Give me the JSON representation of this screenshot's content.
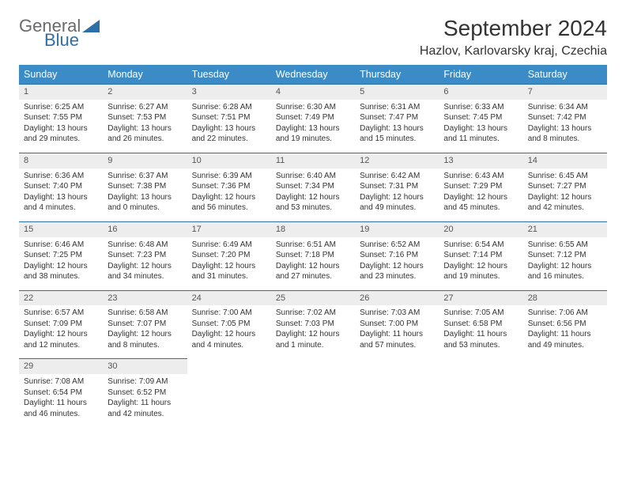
{
  "logo": {
    "text1": "General",
    "text2": "Blue"
  },
  "title": "September 2024",
  "location": "Hazlov, Karlovarsky kraj, Czechia",
  "colors": {
    "header_bg": "#3b8bc7",
    "header_text": "#ffffff",
    "daynum_bg": "#ededed",
    "border": "#2f6fa8",
    "logo_gray": "#6a6a6a",
    "logo_blue": "#2f6fa8"
  },
  "weekdays": [
    "Sunday",
    "Monday",
    "Tuesday",
    "Wednesday",
    "Thursday",
    "Friday",
    "Saturday"
  ],
  "weeks": [
    [
      {
        "n": "1",
        "sr": "6:25 AM",
        "ss": "7:55 PM",
        "dl": "13 hours and 29 minutes."
      },
      {
        "n": "2",
        "sr": "6:27 AM",
        "ss": "7:53 PM",
        "dl": "13 hours and 26 minutes."
      },
      {
        "n": "3",
        "sr": "6:28 AM",
        "ss": "7:51 PM",
        "dl": "13 hours and 22 minutes."
      },
      {
        "n": "4",
        "sr": "6:30 AM",
        "ss": "7:49 PM",
        "dl": "13 hours and 19 minutes."
      },
      {
        "n": "5",
        "sr": "6:31 AM",
        "ss": "7:47 PM",
        "dl": "13 hours and 15 minutes."
      },
      {
        "n": "6",
        "sr": "6:33 AM",
        "ss": "7:45 PM",
        "dl": "13 hours and 11 minutes."
      },
      {
        "n": "7",
        "sr": "6:34 AM",
        "ss": "7:42 PM",
        "dl": "13 hours and 8 minutes."
      }
    ],
    [
      {
        "n": "8",
        "sr": "6:36 AM",
        "ss": "7:40 PM",
        "dl": "13 hours and 4 minutes."
      },
      {
        "n": "9",
        "sr": "6:37 AM",
        "ss": "7:38 PM",
        "dl": "13 hours and 0 minutes."
      },
      {
        "n": "10",
        "sr": "6:39 AM",
        "ss": "7:36 PM",
        "dl": "12 hours and 56 minutes."
      },
      {
        "n": "11",
        "sr": "6:40 AM",
        "ss": "7:34 PM",
        "dl": "12 hours and 53 minutes."
      },
      {
        "n": "12",
        "sr": "6:42 AM",
        "ss": "7:31 PM",
        "dl": "12 hours and 49 minutes."
      },
      {
        "n": "13",
        "sr": "6:43 AM",
        "ss": "7:29 PM",
        "dl": "12 hours and 45 minutes."
      },
      {
        "n": "14",
        "sr": "6:45 AM",
        "ss": "7:27 PM",
        "dl": "12 hours and 42 minutes."
      }
    ],
    [
      {
        "n": "15",
        "sr": "6:46 AM",
        "ss": "7:25 PM",
        "dl": "12 hours and 38 minutes."
      },
      {
        "n": "16",
        "sr": "6:48 AM",
        "ss": "7:23 PM",
        "dl": "12 hours and 34 minutes."
      },
      {
        "n": "17",
        "sr": "6:49 AM",
        "ss": "7:20 PM",
        "dl": "12 hours and 31 minutes."
      },
      {
        "n": "18",
        "sr": "6:51 AM",
        "ss": "7:18 PM",
        "dl": "12 hours and 27 minutes."
      },
      {
        "n": "19",
        "sr": "6:52 AM",
        "ss": "7:16 PM",
        "dl": "12 hours and 23 minutes."
      },
      {
        "n": "20",
        "sr": "6:54 AM",
        "ss": "7:14 PM",
        "dl": "12 hours and 19 minutes."
      },
      {
        "n": "21",
        "sr": "6:55 AM",
        "ss": "7:12 PM",
        "dl": "12 hours and 16 minutes."
      }
    ],
    [
      {
        "n": "22",
        "sr": "6:57 AM",
        "ss": "7:09 PM",
        "dl": "12 hours and 12 minutes."
      },
      {
        "n": "23",
        "sr": "6:58 AM",
        "ss": "7:07 PM",
        "dl": "12 hours and 8 minutes."
      },
      {
        "n": "24",
        "sr": "7:00 AM",
        "ss": "7:05 PM",
        "dl": "12 hours and 4 minutes."
      },
      {
        "n": "25",
        "sr": "7:02 AM",
        "ss": "7:03 PM",
        "dl": "12 hours and 1 minute."
      },
      {
        "n": "26",
        "sr": "7:03 AM",
        "ss": "7:00 PM",
        "dl": "11 hours and 57 minutes."
      },
      {
        "n": "27",
        "sr": "7:05 AM",
        "ss": "6:58 PM",
        "dl": "11 hours and 53 minutes."
      },
      {
        "n": "28",
        "sr": "7:06 AM",
        "ss": "6:56 PM",
        "dl": "11 hours and 49 minutes."
      }
    ],
    [
      {
        "n": "29",
        "sr": "7:08 AM",
        "ss": "6:54 PM",
        "dl": "11 hours and 46 minutes."
      },
      {
        "n": "30",
        "sr": "7:09 AM",
        "ss": "6:52 PM",
        "dl": "11 hours and 42 minutes."
      },
      null,
      null,
      null,
      null,
      null
    ]
  ],
  "labels": {
    "sunrise": "Sunrise:",
    "sunset": "Sunset:",
    "daylight": "Daylight:"
  }
}
